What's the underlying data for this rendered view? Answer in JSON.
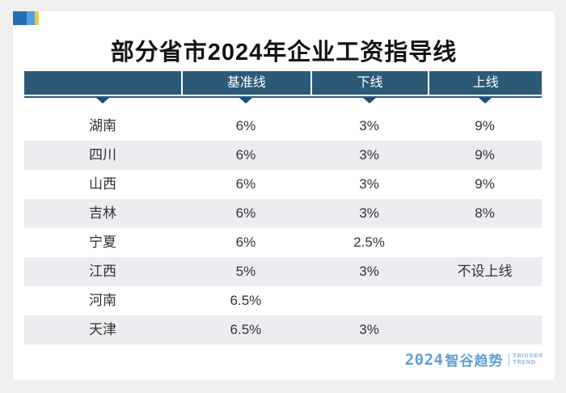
{
  "page": {
    "title": "部分省市2024年企业工资指导线"
  },
  "table": {
    "columns": [
      "",
      "基准线",
      "下线",
      "上线"
    ],
    "rows": [
      [
        "湖南",
        "6%",
        "3%",
        "9%"
      ],
      [
        "四川",
        "6%",
        "3%",
        "9%"
      ],
      [
        "山西",
        "6%",
        "3%",
        "9%"
      ],
      [
        "吉林",
        "6%",
        "3%",
        "8%"
      ],
      [
        "宁夏",
        "6%",
        "2.5%",
        ""
      ],
      [
        "江西",
        "5%",
        "3%",
        "不设上线"
      ],
      [
        "河南",
        "6.5%",
        "",
        ""
      ],
      [
        "天津",
        "6.5%",
        "3%",
        ""
      ]
    ]
  },
  "footer": {
    "logo_year": "2024",
    "logo_brand": "智谷趋势",
    "logo_tag_line1": "TRIGGER",
    "logo_tag_line2": "TREND"
  },
  "icons": {
    "column_marker": "triangle-down",
    "corner_decoration": "flag-blocks"
  },
  "colors": {
    "page_background": "#efefef",
    "card_background": "#ffffff",
    "header_background": "#2b5a78",
    "header_text": "#ffffff",
    "marker_triangle": "#1f4e74",
    "row_stripe": "#ecedf0",
    "body_text": "#323232",
    "title_text": "#141414",
    "logo_blue": "#5b9ed7",
    "deco_dark_blue": "#2270b2",
    "deco_light_blue": "#54a0d8",
    "deco_yellow": "#e9c752"
  }
}
